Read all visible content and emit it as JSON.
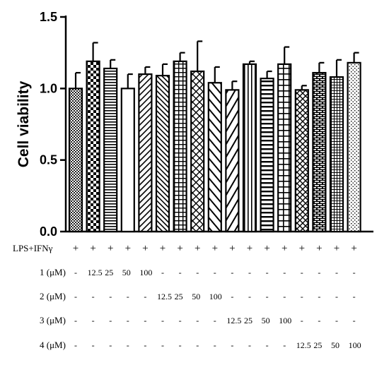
{
  "chart_data": {
    "type": "bar",
    "ylabel": "Cell viability",
    "ylim": [
      0,
      1.5
    ],
    "yticks": [
      "0.0",
      "0.5",
      "1.0",
      "1.5"
    ],
    "grid": false,
    "values": [
      1.0,
      1.19,
      1.14,
      1.0,
      1.1,
      1.09,
      1.19,
      1.12,
      1.04,
      0.99,
      1.17,
      1.07,
      1.17,
      0.99,
      1.11,
      1.08,
      1.18
    ],
    "errors": [
      0.11,
      0.13,
      0.06,
      0.1,
      0.05,
      0.08,
      0.06,
      0.21,
      0.11,
      0.06,
      0.02,
      0.05,
      0.12,
      0.03,
      0.07,
      0.12,
      0.07
    ],
    "patterns": [
      "dots",
      "checker",
      "hlines",
      "open",
      "diag-right",
      "diag-left",
      "grid",
      "diag-cross",
      "wide-diag-left",
      "wide-diag-right",
      "vlines",
      "thick-hlines",
      "grid-wide",
      "xcross",
      "bricks",
      "small-grid",
      "sparse-dots"
    ],
    "table": {
      "rows": [
        {
          "label": "LPS+IFNγ",
          "cells": [
            "+",
            "+",
            "+",
            "+",
            "+",
            "+",
            "+",
            "+",
            "+",
            "+",
            "+",
            "+",
            "+",
            "+",
            "+",
            "+",
            "+"
          ]
        },
        {
          "label": "1 (μM)",
          "cells": [
            "-",
            "12.5",
            "25",
            "50",
            "100",
            "-",
            "-",
            "-",
            "-",
            "-",
            "-",
            "-",
            "-",
            "-",
            "-",
            "-",
            "-"
          ]
        },
        {
          "label": "2 (μM)",
          "cells": [
            "-",
            "-",
            "-",
            "-",
            "-",
            "12.5",
            "25",
            "50",
            "100",
            "-",
            "-",
            "-",
            "-",
            "-",
            "-",
            "-",
            "-"
          ]
        },
        {
          "label": "3 (μM)",
          "cells": [
            "-",
            "-",
            "-",
            "-",
            "-",
            "-",
            "-",
            "-",
            "-",
            "12.5",
            "25",
            "50",
            "100",
            "-",
            "-",
            "-",
            "-"
          ]
        },
        {
          "label": "4 (μM)",
          "cells": [
            "-",
            "-",
            "-",
            "-",
            "-",
            "-",
            "-",
            "-",
            "-",
            "-",
            "-",
            "-",
            "-",
            "12.5",
            "25",
            "50",
            "100"
          ]
        }
      ]
    }
  }
}
